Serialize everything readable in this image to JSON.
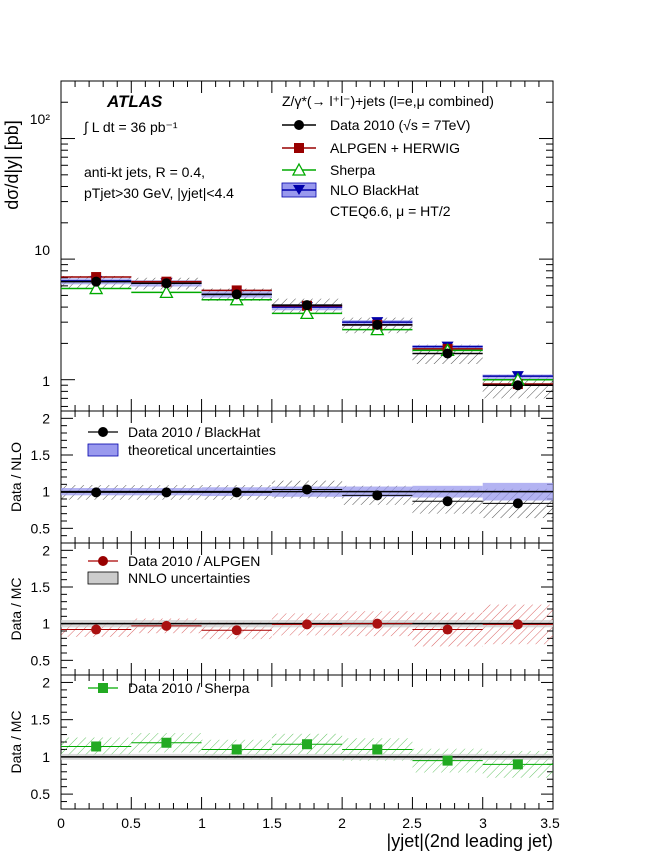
{
  "chart_data": [
    {
      "panel": "main",
      "type": "line",
      "bin_edges": [
        0,
        0.5,
        1,
        1.5,
        2,
        2.5,
        3,
        3.5
      ],
      "x_centers": [
        0.25,
        0.75,
        1.25,
        1.75,
        2.25,
        2.75,
        3.25
      ],
      "ylabel": "dσ/d|y| [pb]",
      "yscale": "log",
      "ylim": [
        0.55,
        300
      ],
      "y_tick_labels": [
        "1",
        "10",
        "10²"
      ],
      "atlas_label": "ATLAS",
      "lumi_label": "∫ L dt = 36 pb⁻¹",
      "jet_label_1": "anti-kt jets,  R = 0.4,",
      "jet_label_2": "pTjet>30 GeV, |yjet|<4.4",
      "legend_header": "Z/γ*(→ l⁺l⁻)+jets (l=e,μ combined)",
      "legend_note": "CTEQ6.6, μ = HT/2",
      "series": [
        {
          "name": "Data 2010 (√s = 7TeV)",
          "values": [
            6.5,
            6.3,
            5.1,
            4.15,
            2.85,
            1.65,
            0.9
          ],
          "errors": [
            0.75,
            0.7,
            0.6,
            0.55,
            0.42,
            0.3,
            0.2
          ],
          "color": "#000000",
          "marker": "circle"
        },
        {
          "name": "ALPGEN + HERWIG",
          "values": [
            7.1,
            6.5,
            5.5,
            4.1,
            2.85,
            1.8,
            0.92
          ],
          "color": "#990000",
          "marker": "square"
        },
        {
          "name": "Sherpa",
          "values": [
            5.7,
            5.3,
            4.6,
            3.55,
            2.6,
            1.75,
            1.0
          ],
          "color": "#00aa00",
          "marker": "triangle-open"
        },
        {
          "name": "NLO BlackHat",
          "values": [
            6.6,
            6.3,
            5.1,
            4.0,
            3.0,
            1.88,
            1.07
          ],
          "band": [
            0.25,
            0.3,
            0.3,
            0.28,
            0.2,
            0.15,
            0.16
          ],
          "color": "#0000aa",
          "band_color": "#9999ee",
          "marker": "triangle-down"
        }
      ]
    },
    {
      "panel": "ratio-nlo",
      "type": "line",
      "ylabel": "Data / NLO",
      "ylim": [
        0.3,
        2.1
      ],
      "y_tick_labels": [
        "0.5",
        "1",
        "1.5",
        "2"
      ],
      "series": [
        {
          "name": "Data 2010 / BlackHat",
          "values": [
            0.99,
            0.99,
            0.99,
            1.03,
            0.95,
            0.87,
            0.84
          ],
          "errors": [
            0.1,
            0.1,
            0.1,
            0.12,
            0.13,
            0.17,
            0.2
          ],
          "color": "#000000"
        },
        {
          "name": "theoretical uncertainties",
          "band": [
            0.05,
            0.05,
            0.06,
            0.07,
            0.07,
            0.08,
            0.12
          ],
          "color": "#9999ee"
        }
      ]
    },
    {
      "panel": "ratio-alpgen",
      "type": "line",
      "ylabel": "Data / MC",
      "ylim": [
        0.3,
        2.1
      ],
      "y_tick_labels": [
        "0.5",
        "1",
        "1.5",
        "2"
      ],
      "series": [
        {
          "name": "Data 2010 / ALPGEN",
          "values": [
            0.92,
            0.97,
            0.91,
            0.99,
            1.0,
            0.92,
            0.99
          ],
          "errors": [
            0.1,
            0.1,
            0.12,
            0.15,
            0.17,
            0.23,
            0.27
          ],
          "color": "#aa0000"
        },
        {
          "name": "NNLO uncertainties",
          "band": [
            0.05,
            0.05,
            0.05,
            0.05,
            0.05,
            0.05,
            0.05
          ],
          "color": "#cccccc"
        }
      ]
    },
    {
      "panel": "ratio-sherpa",
      "type": "line",
      "ylabel": "Data / MC",
      "ylim": [
        0.3,
        2.1
      ],
      "y_tick_labels": [
        "0.5",
        "1",
        "1.5",
        "2"
      ],
      "xlabel": "|yjet|(2nd leading jet)",
      "x_tick_labels": [
        "0",
        "0.5",
        "1",
        "1.5",
        "2",
        "2.5",
        "3",
        "3.5"
      ],
      "series": [
        {
          "name": "Data 2010 / Sherpa",
          "values": [
            1.14,
            1.19,
            1.1,
            1.17,
            1.1,
            0.95,
            0.9
          ],
          "errors": [
            0.12,
            0.13,
            0.13,
            0.14,
            0.15,
            0.16,
            0.18
          ],
          "color": "#00aa00"
        },
        {
          "name": "NNLO uncertainties",
          "band": [
            0.04,
            0.04,
            0.04,
            0.04,
            0.04,
            0.04,
            0.04
          ],
          "color": "#cccccc"
        }
      ]
    }
  ]
}
